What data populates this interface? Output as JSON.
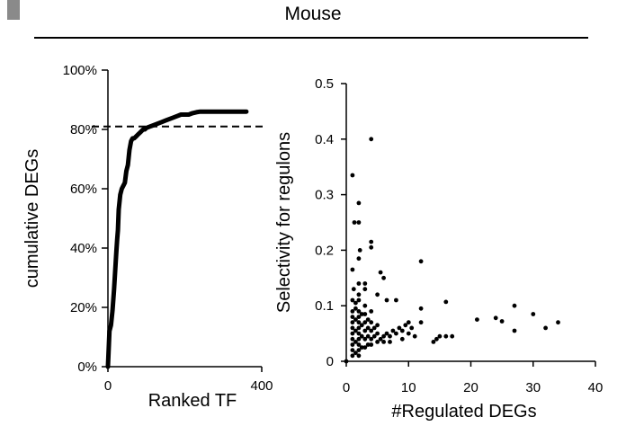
{
  "figure": {
    "title": "Mouse"
  },
  "chart_data": [
    {
      "type": "line",
      "xlabel": "Ranked TF",
      "ylabel": "cumulative DEGs",
      "xlim": [
        0,
        400
      ],
      "ylim": [
        0,
        100
      ],
      "x_ticks": [
        "0",
        "400"
      ],
      "y_ticks": [
        "0%",
        "20%",
        "40%",
        "60%",
        "80%",
        "100%"
      ],
      "reference_line": {
        "y": 81,
        "style": "dashed"
      },
      "series": [
        {
          "x": [
            0,
            4,
            8,
            12,
            16,
            20,
            22,
            24,
            26,
            28,
            32,
            36,
            40,
            44,
            48,
            52,
            56,
            60,
            64,
            68,
            72,
            76,
            80,
            84,
            88,
            92,
            96,
            100,
            110,
            120,
            130,
            140,
            150,
            160,
            170,
            180,
            190,
            200,
            210,
            220,
            230,
            240,
            250,
            260,
            270,
            280,
            290,
            300,
            310,
            320,
            330,
            340,
            350,
            360
          ],
          "values": [
            0,
            12,
            14,
            19,
            26,
            35,
            39,
            43,
            46,
            53,
            58,
            60,
            61,
            62,
            66,
            68,
            73,
            76,
            77,
            77,
            77.5,
            78,
            78.5,
            79,
            79.5,
            80,
            80,
            80.5,
            81,
            81.5,
            82,
            82.5,
            83,
            83.5,
            84,
            84.5,
            85,
            85,
            85,
            85.5,
            85.8,
            86,
            86,
            86,
            86,
            86,
            86,
            86,
            86,
            86,
            86,
            86,
            86,
            86
          ]
        }
      ]
    },
    {
      "type": "scatter",
      "xlabel": "#Regulated DEGs",
      "ylabel": "Selectivity for regulons",
      "xlim": [
        0,
        40
      ],
      "ylim": [
        0,
        0.5
      ],
      "x_ticks": [
        "0",
        "10",
        "20",
        "30",
        "40"
      ],
      "y_ticks": [
        "0",
        "0.1",
        "0.2",
        "0.3",
        "0.4",
        "0.5"
      ],
      "points": [
        [
          1,
          0.335
        ],
        [
          1.3,
          0.25
        ],
        [
          2,
          0.25
        ],
        [
          2,
          0.285
        ],
        [
          2.2,
          0.2
        ],
        [
          4,
          0.4
        ],
        [
          4,
          0.205
        ],
        [
          4,
          0.215
        ],
        [
          1,
          0.165
        ],
        [
          2,
          0.185
        ],
        [
          1.2,
          0.13
        ],
        [
          2,
          0.14
        ],
        [
          3,
          0.13
        ],
        [
          2,
          0.12
        ],
        [
          3,
          0.14
        ],
        [
          1,
          0.11
        ],
        [
          1.5,
          0.105
        ],
        [
          2,
          0.11
        ],
        [
          3,
          0.1
        ],
        [
          4,
          0.09
        ],
        [
          5,
          0.12
        ],
        [
          5.5,
          0.16
        ],
        [
          6,
          0.15
        ],
        [
          6.5,
          0.11
        ],
        [
          8,
          0.11
        ],
        [
          12,
          0.18
        ],
        [
          12,
          0.095
        ],
        [
          16,
          0.107
        ],
        [
          1,
          0.09
        ],
        [
          1,
          0.08
        ],
        [
          1,
          0.07
        ],
        [
          1,
          0.06
        ],
        [
          1,
          0.05
        ],
        [
          1,
          0.04
        ],
        [
          1,
          0.03
        ],
        [
          1,
          0.02
        ],
        [
          1,
          0.01
        ],
        [
          1.5,
          0.095
        ],
        [
          1.5,
          0.075
        ],
        [
          1.5,
          0.055
        ],
        [
          1.5,
          0.035
        ],
        [
          1.5,
          0.015
        ],
        [
          2,
          0.09
        ],
        [
          2,
          0.08
        ],
        [
          2,
          0.07
        ],
        [
          2,
          0.06
        ],
        [
          2,
          0.05
        ],
        [
          2,
          0.04
        ],
        [
          2,
          0.03
        ],
        [
          2,
          0.02
        ],
        [
          2,
          0.01
        ],
        [
          2.5,
          0.085
        ],
        [
          2.5,
          0.065
        ],
        [
          2.5,
          0.045
        ],
        [
          2.5,
          0.025
        ],
        [
          3,
          0.085
        ],
        [
          3,
          0.07
        ],
        [
          3,
          0.055
        ],
        [
          3,
          0.04
        ],
        [
          3,
          0.025
        ],
        [
          3.5,
          0.075
        ],
        [
          3.5,
          0.06
        ],
        [
          3.5,
          0.045
        ],
        [
          3.5,
          0.03
        ],
        [
          4,
          0.07
        ],
        [
          4,
          0.055
        ],
        [
          4,
          0.04
        ],
        [
          4,
          0.03
        ],
        [
          4.5,
          0.06
        ],
        [
          4.5,
          0.045
        ],
        [
          5,
          0.065
        ],
        [
          5,
          0.05
        ],
        [
          5,
          0.035
        ],
        [
          5.5,
          0.04
        ],
        [
          6,
          0.045
        ],
        [
          6,
          0.035
        ],
        [
          6.5,
          0.05
        ],
        [
          7,
          0.045
        ],
        [
          7,
          0.035
        ],
        [
          7.5,
          0.055
        ],
        [
          8,
          0.05
        ],
        [
          8.5,
          0.06
        ],
        [
          9,
          0.055
        ],
        [
          9,
          0.04
        ],
        [
          9.5,
          0.065
        ],
        [
          10,
          0.07
        ],
        [
          10,
          0.05
        ],
        [
          10.5,
          0.06
        ],
        [
          11,
          0.045
        ],
        [
          12,
          0.07
        ],
        [
          14,
          0.035
        ],
        [
          14.5,
          0.04
        ],
        [
          15,
          0.045
        ],
        [
          16,
          0.045
        ],
        [
          17,
          0.045
        ],
        [
          21,
          0.075
        ],
        [
          24,
          0.078
        ],
        [
          25,
          0.072
        ],
        [
          27,
          0.1
        ],
        [
          27,
          0.055
        ],
        [
          30,
          0.085
        ],
        [
          32,
          0.06
        ],
        [
          34,
          0.07
        ],
        [
          0,
          0
        ]
      ]
    }
  ]
}
